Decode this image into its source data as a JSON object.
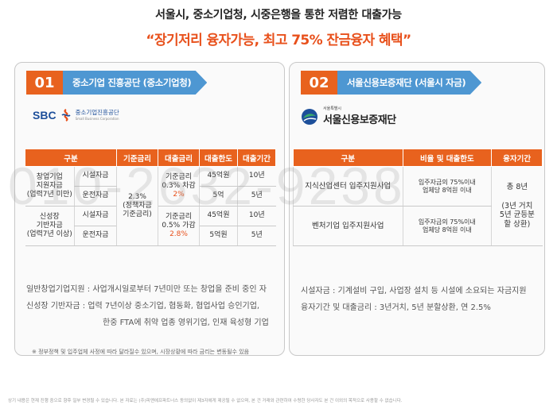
{
  "header": {
    "headline": "서울시, 중소기업청, 시중은행을 통한 저렴한 대출가능",
    "subheadline": "“장기저리 융자가능, 최고 75% 잔금융자 혜택”"
  },
  "panel1": {
    "number": "01",
    "title": "중소기업 진흥공단 (중소기업청)",
    "logo": {
      "abbr": "SBC",
      "korean": "중소기업진흥공단",
      "english": "Small Business Corporation"
    },
    "table": {
      "headers": [
        "구분",
        "기준금리",
        "대출금리",
        "대출한도",
        "대출기간"
      ],
      "groups": [
        {
          "name": "창업기업\n지원자금\n(업력7년 미만)",
          "rows": [
            {
              "type": "시설자금",
              "limit": "45억원",
              "period": "10년"
            },
            {
              "type": "운전자금",
              "limit": "5억",
              "period": "5년"
            }
          ],
          "rate_line1": "기준금리\n0.3% 차감",
          "rate_value": "2%"
        },
        {
          "name": "신성장\n기반자금\n(업력7년 이상)",
          "rows": [
            {
              "type": "시설자금",
              "limit": "45억원",
              "period": "10년"
            },
            {
              "type": "운전자금",
              "limit": "5억원",
              "period": "5년"
            }
          ],
          "rate_line1": "기준금리\n0.5% 가감",
          "rate_value": "2.8%"
        }
      ],
      "base_rate": "2.3%\n(정책자금\n기준금리)"
    },
    "notes": [
      "일반창업기업지원 : 사업개시일로부터 7년미만 또는 창업을 준비 중인 자",
      "신성장 기반자금 : 업력 7년이상 중소기업, 협동화, 협업사업 승인기업,",
      "한중 FTA에 취약 업종 영위기업, 인재 육성형 기업"
    ],
    "footnote": "※ 정부정책 및 입주업체 사정에 따라 달라질수 있으며, 시장상황에 따라 금리는 변동될수 있음"
  },
  "panel2": {
    "number": "02",
    "title": "서울신용보증재단 (서울시 자금)",
    "logo": {
      "small": "서울특별시",
      "name": "서울신용보증재단"
    },
    "table": {
      "headers": [
        "구분",
        "비율 및 대출한도",
        "융자기간"
      ],
      "rows": [
        {
          "type": "지식산업센터 입주지원사업",
          "ratio": "입주자금의 75%이내\n업체당 8억원 이내"
        },
        {
          "type": "벤처기업 입주지원사업",
          "ratio": "입주자금의 75%이내\n업체당 8억원 이내"
        }
      ],
      "period": "총 8년\n\n(3년 거치\n5년 균등분\n할 상환)"
    },
    "notes": [
      "시설자금 : 기계설비 구입, 사업장 설치 등 시설에 소요되는 자금지원",
      "융자기간 및 대출금리 : 3년거치, 5년 분할상환, 연 2.5%"
    ]
  },
  "disclaimer": "상기 내용은 현재 진행 중으로 향후 일부 변경될 수 있습니다. 본 자료는 (주)피앤에프파트너스 동의없이 제3자에게 제공될 수 없으며, 본 건 거래와 관련하여 수령한 당사자도 본 건 이외의 목적으로 사용할 수 없습니다.",
  "watermark": "010-2632-9238",
  "colors": {
    "accent": "#e8621e",
    "title_bar": "#4e97d2",
    "highlight": "#e8501b"
  }
}
